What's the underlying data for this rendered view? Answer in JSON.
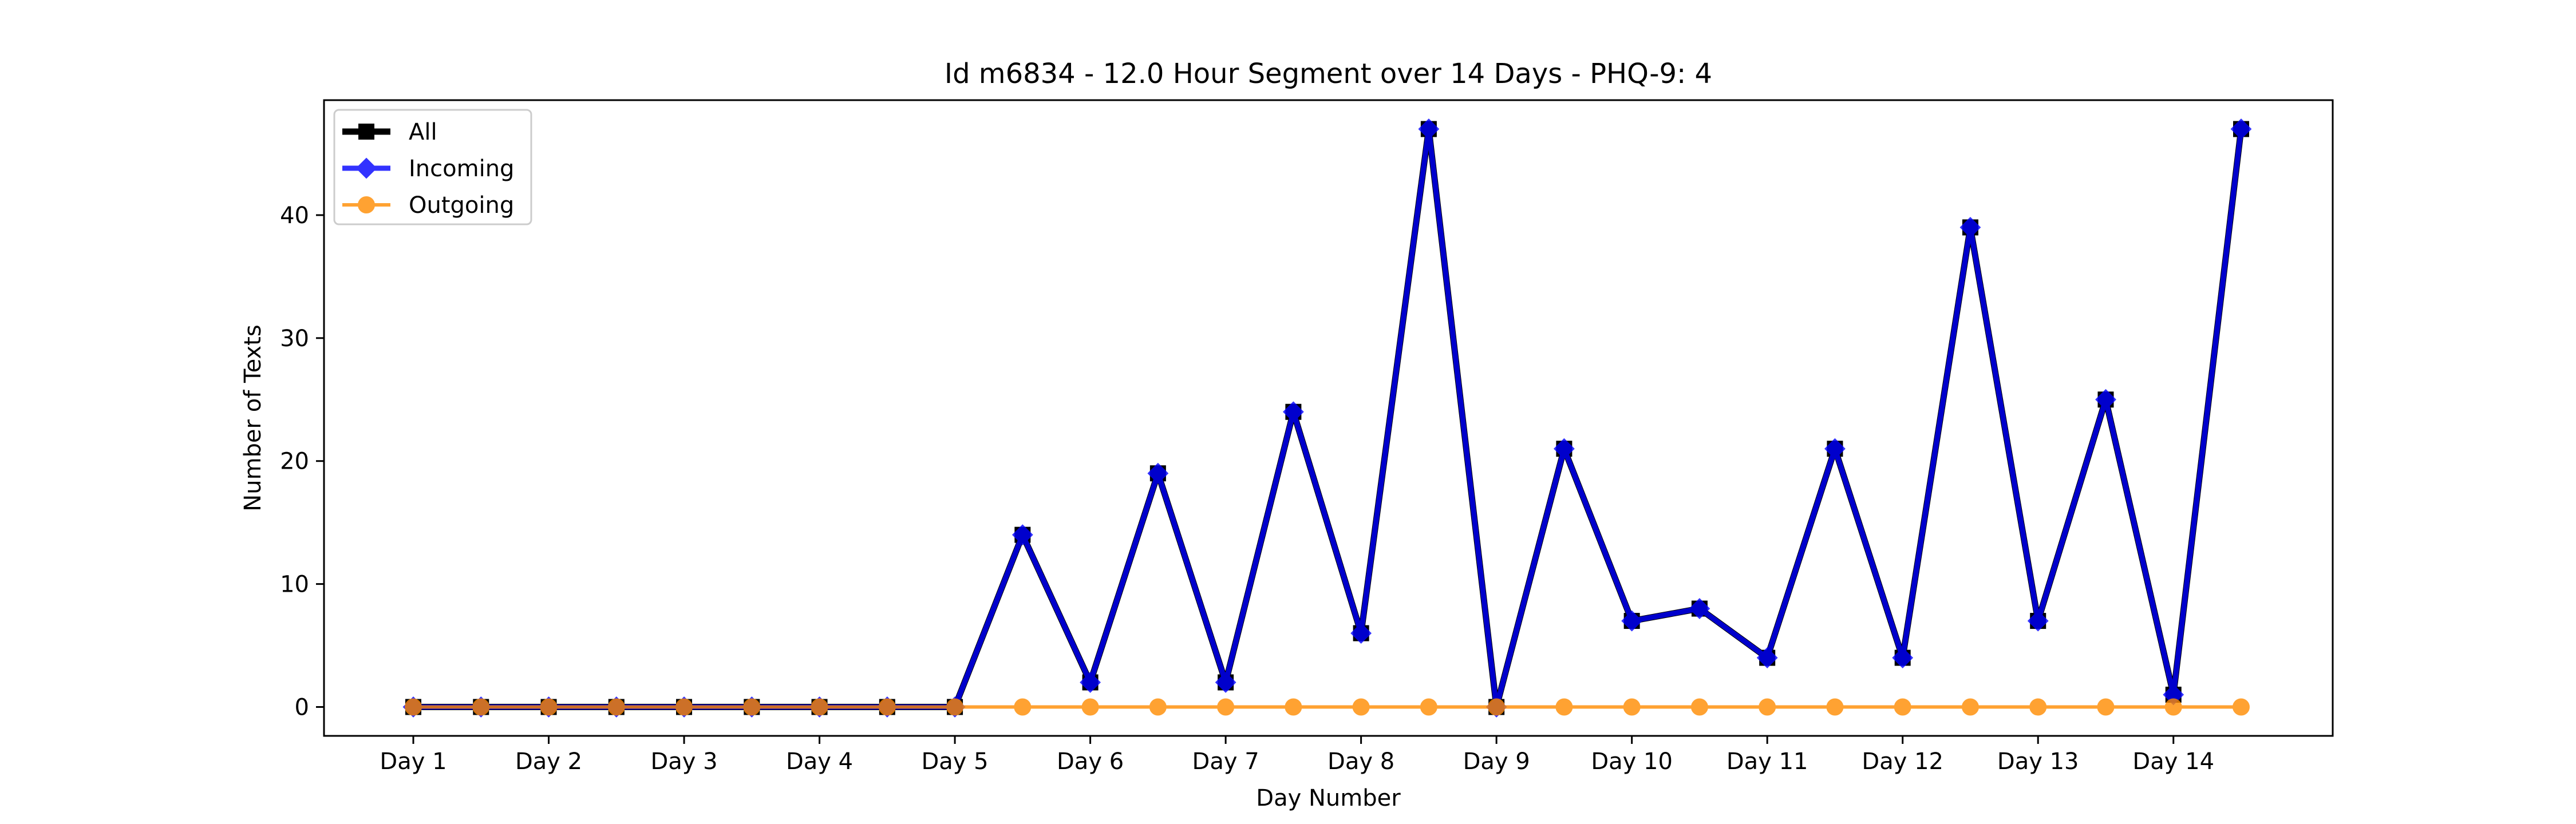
{
  "chart_data": {
    "type": "line",
    "title": "Id m6834 - 12.0 Hour Segment over 14 Days - PHQ-9: 4",
    "xlabel": "Day Number",
    "ylabel": "Number of Texts",
    "x_tick_labels": [
      "Day 1",
      "Day 2",
      "Day 3",
      "Day 4",
      "Day 5",
      "Day 6",
      "Day 7",
      "Day 8",
      "Day 9",
      "Day 10",
      "Day 11",
      "Day 12",
      "Day 13",
      "Day 14"
    ],
    "y_ticks": [
      0,
      10,
      20,
      30,
      40
    ],
    "ylim": [
      -2.35,
      49.35
    ],
    "grid": false,
    "legend_position": "top-left",
    "series": [
      {
        "name": "All",
        "color": "#000000",
        "marker": "square",
        "values": [
          0,
          0,
          0,
          0,
          0,
          0,
          0,
          0,
          0,
          14,
          2,
          19,
          2,
          24,
          6,
          47,
          0,
          21,
          7,
          8,
          4,
          21,
          4,
          39,
          7,
          25,
          1,
          47
        ]
      },
      {
        "name": "Incoming",
        "color": "#0000ff",
        "marker": "diamond",
        "values": [
          0,
          0,
          0,
          0,
          0,
          0,
          0,
          0,
          0,
          14,
          2,
          19,
          2,
          24,
          6,
          47,
          0,
          21,
          7,
          8,
          4,
          21,
          4,
          39,
          7,
          25,
          1,
          47
        ]
      },
      {
        "name": "Outgoing",
        "color": "#ff8c00",
        "marker": "circle",
        "values": [
          0,
          0,
          0,
          0,
          0,
          0,
          0,
          0,
          0,
          0,
          0,
          0,
          0,
          0,
          0,
          0,
          0,
          0,
          0,
          0,
          0,
          0,
          0,
          0,
          0,
          0,
          0,
          0
        ]
      }
    ]
  }
}
